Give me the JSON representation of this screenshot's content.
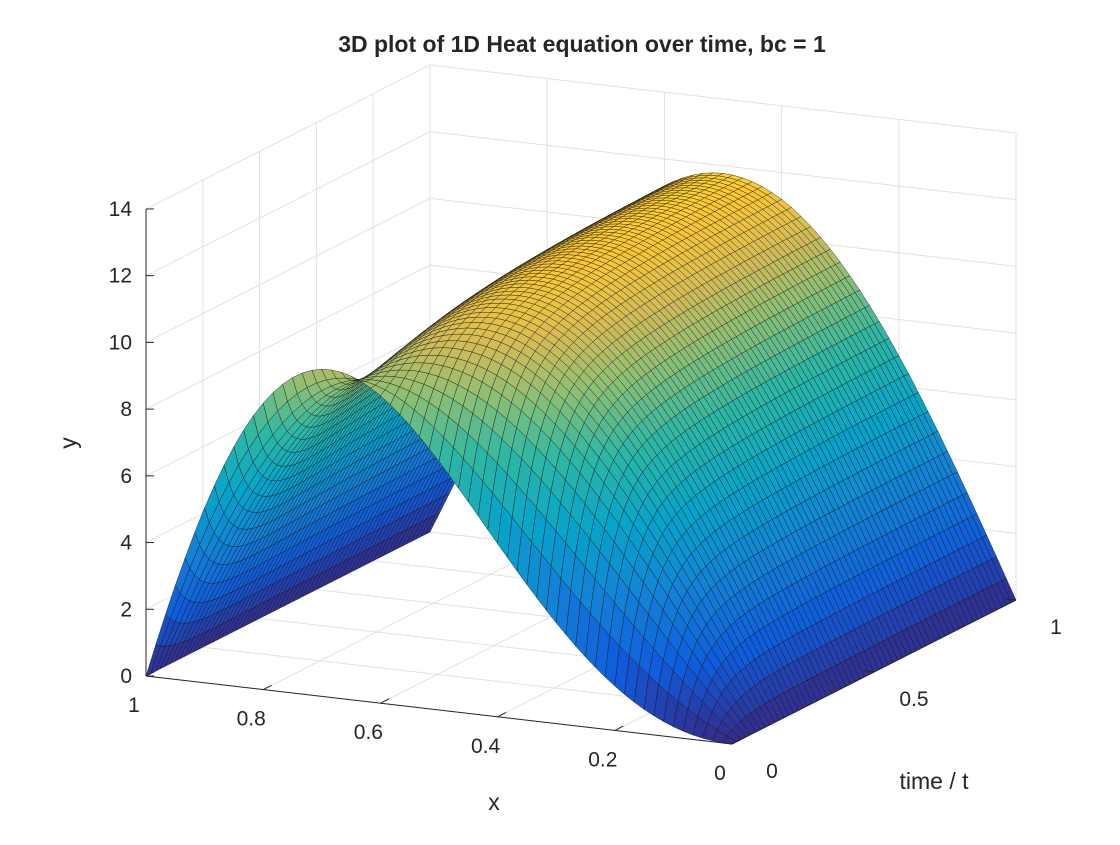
{
  "chart_data": {
    "type": "surface",
    "title": "3D plot of 1D Heat equation over time, bc = 1",
    "xlabel": "x",
    "ylabel": "y",
    "tlabel": "time / t",
    "x_range": [
      0,
      1
    ],
    "t_range": [
      0,
      1
    ],
    "z_range": [
      0,
      14
    ],
    "x_ticks": [
      0,
      0.2,
      0.4,
      0.6,
      0.8,
      1
    ],
    "x_tick_labels": [
      "0",
      "0.2",
      "0.4",
      "0.6",
      "0.8",
      "1"
    ],
    "t_ticks": [
      0,
      0.5,
      1
    ],
    "t_tick_labels": [
      "0",
      "0.5",
      "1"
    ],
    "z_ticks": [
      0,
      2,
      4,
      6,
      8,
      10,
      12,
      14
    ],
    "z_tick_labels": [
      "0",
      "2",
      "4",
      "6",
      "8",
      "10",
      "12",
      "14"
    ],
    "grid": true,
    "colormap": "parula",
    "mesh_edges": true,
    "description_values": {
      "boundary_condition": 1,
      "initial_profile": "spike near x = 1, peak y ≈ 12.6 at t = 0",
      "final_profile": "smooth arch peaking near x ≈ 0.5, y ≈ 10 at t = 1",
      "boundary_values": "y = 0 at x = 0 and x = 1 for all t"
    },
    "grid_samples": {
      "nx": 60,
      "nt": 60
    }
  }
}
